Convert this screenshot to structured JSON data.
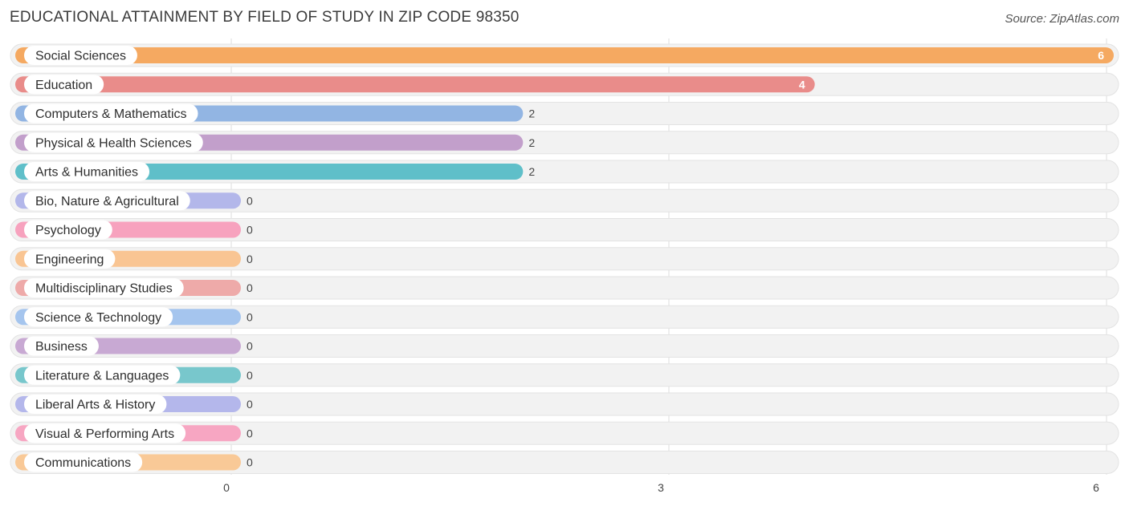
{
  "title": "EDUCATIONAL ATTAINMENT BY FIELD OF STUDY IN ZIP CODE 98350",
  "source": "Source: ZipAtlas.com",
  "chart_data": {
    "type": "bar",
    "orientation": "horizontal",
    "categories": [
      "Social Sciences",
      "Education",
      "Computers & Mathematics",
      "Physical & Health Sciences",
      "Arts & Humanities",
      "Bio, Nature & Agricultural",
      "Psychology",
      "Engineering",
      "Multidisciplinary Studies",
      "Science & Technology",
      "Business",
      "Literature & Languages",
      "Liberal Arts & History",
      "Visual & Performing Arts",
      "Communications"
    ],
    "values": [
      6,
      4,
      2,
      2,
      2,
      0,
      0,
      0,
      0,
      0,
      0,
      0,
      0,
      0,
      0
    ],
    "colors": [
      "#f5a961",
      "#e98c8a",
      "#92b5e3",
      "#c29fcb",
      "#5fbfc9",
      "#b3b7ea",
      "#f7a2be",
      "#f9c593",
      "#eeaaa9",
      "#a5c5ee",
      "#c8a9d3",
      "#78c7cc",
      "#b4b7eb",
      "#f7a6c2",
      "#f9c997"
    ],
    "xlim": [
      0,
      6
    ],
    "xticks": [
      0,
      3,
      6
    ],
    "grid": true
  }
}
